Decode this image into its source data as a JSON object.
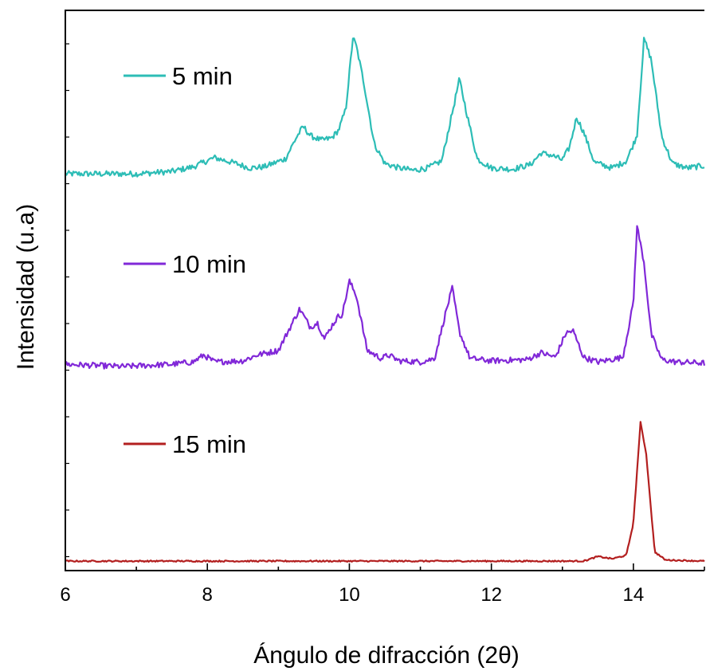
{
  "chart_data": {
    "type": "line",
    "title": "",
    "xlabel": "Ángulo de difracción (2θ)",
    "ylabel": "Intensidad (u.a)",
    "xlim": [
      6,
      15
    ],
    "x_ticks": [
      6,
      8,
      10,
      12,
      14
    ],
    "y_ticks_labeled": false,
    "grid": false,
    "legend_placement": "inline-left",
    "series": [
      {
        "name": "5 min",
        "color": "#2dbdb6",
        "offset": 2.0,
        "points": [
          [
            6.0,
            0.02
          ],
          [
            7.0,
            0.02
          ],
          [
            7.5,
            0.04
          ],
          [
            7.8,
            0.08
          ],
          [
            8.1,
            0.16
          ],
          [
            8.4,
            0.11
          ],
          [
            8.6,
            0.07
          ],
          [
            8.8,
            0.08
          ],
          [
            9.1,
            0.15
          ],
          [
            9.25,
            0.33
          ],
          [
            9.35,
            0.43
          ],
          [
            9.45,
            0.35
          ],
          [
            9.6,
            0.31
          ],
          [
            9.75,
            0.33
          ],
          [
            9.85,
            0.4
          ],
          [
            9.95,
            0.58
          ],
          [
            10.05,
            1.2
          ],
          [
            10.1,
            1.12
          ],
          [
            10.2,
            0.82
          ],
          [
            10.35,
            0.28
          ],
          [
            10.5,
            0.11
          ],
          [
            10.7,
            0.07
          ],
          [
            10.9,
            0.05
          ],
          [
            11.1,
            0.07
          ],
          [
            11.3,
            0.13
          ],
          [
            11.45,
            0.55
          ],
          [
            11.55,
            0.84
          ],
          [
            11.65,
            0.55
          ],
          [
            11.8,
            0.15
          ],
          [
            12.0,
            0.07
          ],
          [
            12.3,
            0.06
          ],
          [
            12.55,
            0.1
          ],
          [
            12.7,
            0.2
          ],
          [
            12.85,
            0.18
          ],
          [
            13.0,
            0.14
          ],
          [
            13.1,
            0.25
          ],
          [
            13.2,
            0.51
          ],
          [
            13.3,
            0.38
          ],
          [
            13.45,
            0.12
          ],
          [
            13.7,
            0.07
          ],
          [
            13.9,
            0.13
          ],
          [
            14.05,
            0.35
          ],
          [
            14.15,
            1.19
          ],
          [
            14.25,
            1.01
          ],
          [
            14.4,
            0.34
          ],
          [
            14.55,
            0.11
          ],
          [
            14.75,
            0.07
          ],
          [
            15.0,
            0.09
          ]
        ]
      },
      {
        "name": "10 min",
        "color": "#8128d8",
        "offset": 1.0,
        "points": [
          [
            6.0,
            0.02
          ],
          [
            6.8,
            0.0
          ],
          [
            7.5,
            0.02
          ],
          [
            7.8,
            0.04
          ],
          [
            7.95,
            0.1
          ],
          [
            8.1,
            0.04
          ],
          [
            8.5,
            0.05
          ],
          [
            8.7,
            0.1
          ],
          [
            9.0,
            0.14
          ],
          [
            9.15,
            0.32
          ],
          [
            9.3,
            0.5
          ],
          [
            9.45,
            0.34
          ],
          [
            9.55,
            0.38
          ],
          [
            9.65,
            0.24
          ],
          [
            9.75,
            0.35
          ],
          [
            9.85,
            0.44
          ],
          [
            9.9,
            0.45
          ],
          [
            10.0,
            0.74
          ],
          [
            10.1,
            0.61
          ],
          [
            10.25,
            0.14
          ],
          [
            10.45,
            0.07
          ],
          [
            10.55,
            0.1
          ],
          [
            10.7,
            0.05
          ],
          [
            11.0,
            0.04
          ],
          [
            11.2,
            0.07
          ],
          [
            11.35,
            0.45
          ],
          [
            11.45,
            0.68
          ],
          [
            11.55,
            0.3
          ],
          [
            11.7,
            0.07
          ],
          [
            12.0,
            0.05
          ],
          [
            12.5,
            0.06
          ],
          [
            12.7,
            0.12
          ],
          [
            12.9,
            0.08
          ],
          [
            13.05,
            0.29
          ],
          [
            13.15,
            0.31
          ],
          [
            13.3,
            0.08
          ],
          [
            13.5,
            0.04
          ],
          [
            13.85,
            0.08
          ],
          [
            14.0,
            0.55
          ],
          [
            14.05,
            1.22
          ],
          [
            14.15,
            0.9
          ],
          [
            14.25,
            0.28
          ],
          [
            14.4,
            0.06
          ],
          [
            14.6,
            0.04
          ],
          [
            15.0,
            0.03
          ]
        ]
      },
      {
        "name": "15 min",
        "color": "#b31f1f",
        "offset": 0.0,
        "points": [
          [
            6.0,
            0.02
          ],
          [
            13.3,
            0.02
          ],
          [
            13.5,
            0.06
          ],
          [
            13.7,
            0.04
          ],
          [
            13.9,
            0.07
          ],
          [
            14.0,
            0.35
          ],
          [
            14.1,
            1.22
          ],
          [
            14.18,
            0.95
          ],
          [
            14.3,
            0.1
          ],
          [
            14.45,
            0.03
          ],
          [
            15.0,
            0.02
          ]
        ]
      }
    ]
  }
}
